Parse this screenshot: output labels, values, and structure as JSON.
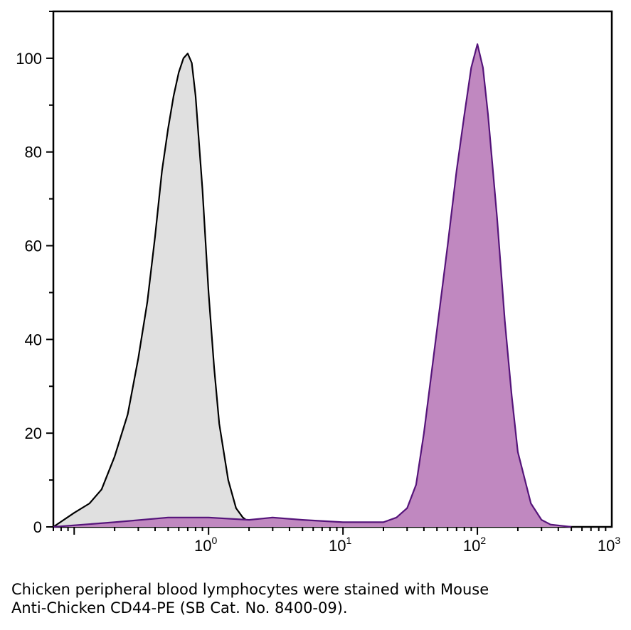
{
  "caption": {
    "line1": "Chicken peripheral blood lymphocytes were stained with Mouse",
    "line2": "Anti-Chicken CD44-PE (SB Cat. No. 8400-09)."
  },
  "chart_data": {
    "type": "area",
    "title": "",
    "xlabel": "",
    "ylabel": "",
    "x_scale": "log",
    "xlim": [
      0.07,
      1000
    ],
    "ylim": [
      0,
      110
    ],
    "grid": false,
    "x_ticks": [
      {
        "base": "10",
        "exp": "0",
        "value": 1
      },
      {
        "base": "10",
        "exp": "1",
        "value": 10
      },
      {
        "base": "10",
        "exp": "2",
        "value": 100
      },
      {
        "base": "10",
        "exp": "3",
        "value": 1000
      }
    ],
    "y_ticks": [
      {
        "label": "0",
        "value": 0
      },
      {
        "label": "20",
        "value": 20
      },
      {
        "label": "40",
        "value": 40
      },
      {
        "label": "60",
        "value": 60
      },
      {
        "label": "80",
        "value": 80
      },
      {
        "label": "100",
        "value": 100
      }
    ],
    "series": [
      {
        "fill": "#e0e0e0",
        "stroke": "#000000",
        "x": [
          0.07,
          0.1,
          0.13,
          0.16,
          0.2,
          0.25,
          0.3,
          0.35,
          0.4,
          0.45,
          0.5,
          0.55,
          0.6,
          0.65,
          0.7,
          0.75,
          0.8,
          0.9,
          1.0,
          1.1,
          1.2,
          1.4,
          1.6,
          1.8,
          2.0,
          2.3
        ],
        "y": [
          0,
          3,
          5,
          8,
          15,
          24,
          36,
          48,
          62,
          76,
          85,
          92,
          97,
          100,
          101,
          99,
          92,
          72,
          50,
          34,
          22,
          10,
          4,
          2,
          1,
          0
        ]
      },
      {
        "fill": "#c088c0",
        "stroke": "#55147a",
        "x": [
          0.07,
          0.2,
          0.5,
          1.0,
          2.0,
          3.0,
          5.0,
          10,
          15,
          20,
          25,
          30,
          35,
          40,
          50,
          60,
          70,
          80,
          90,
          100,
          110,
          120,
          140,
          160,
          180,
          200,
          250,
          300,
          350,
          500
        ],
        "y": [
          0,
          1,
          2,
          2,
          1.5,
          2,
          1.5,
          1,
          1,
          1,
          2,
          4,
          9,
          20,
          42,
          60,
          76,
          88,
          98,
          103,
          98,
          88,
          66,
          44,
          28,
          16,
          5,
          1.5,
          0.5,
          0
        ]
      }
    ]
  }
}
